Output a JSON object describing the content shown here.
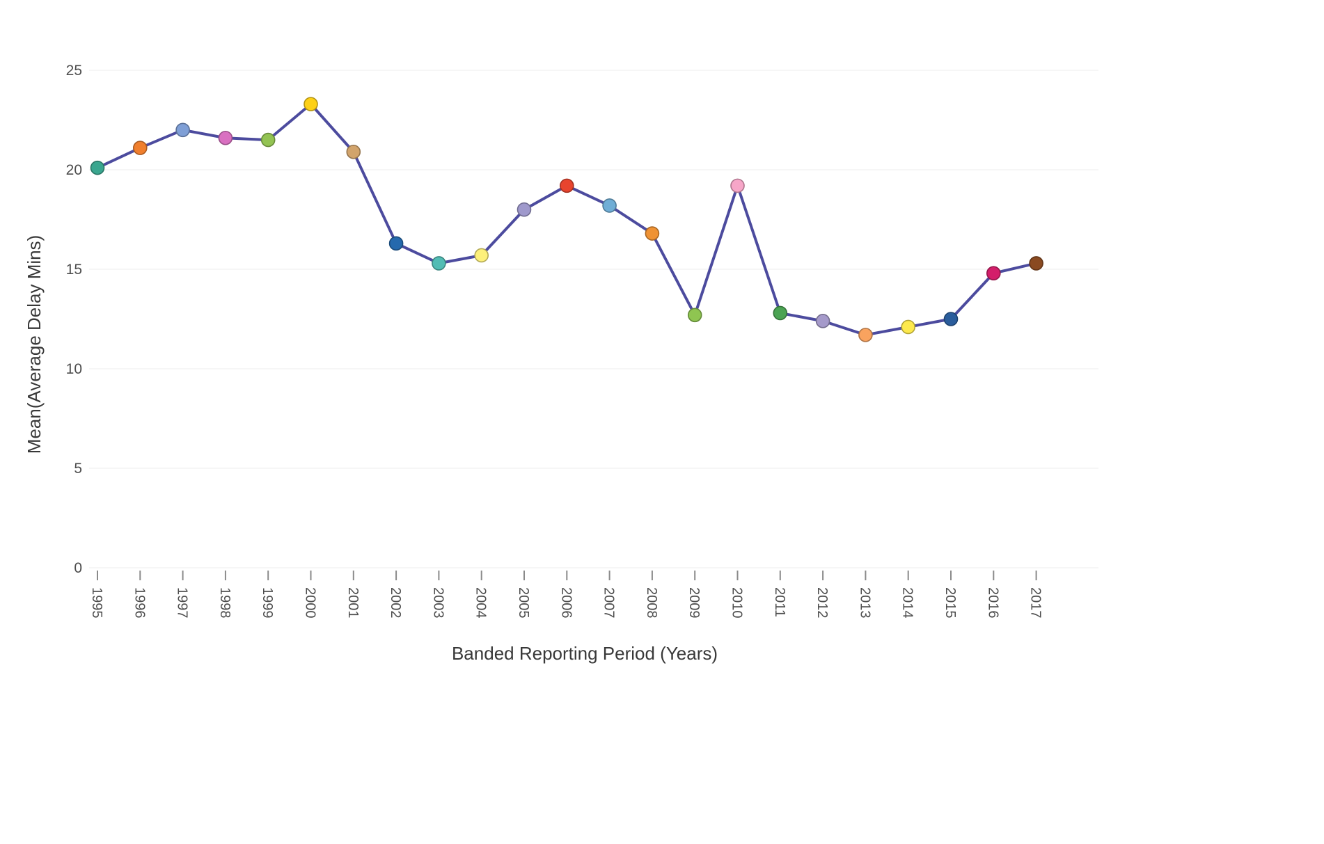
{
  "chart_data": {
    "type": "line",
    "title": "",
    "xlabel": "Banded Reporting Period (Years)",
    "ylabel": "Mean(Average Delay Mins)",
    "categories": [
      "1995",
      "1996",
      "1997",
      "1998",
      "1999",
      "2000",
      "2001",
      "2002",
      "2003",
      "2004",
      "2005",
      "2006",
      "2007",
      "2008",
      "2009",
      "2010",
      "2011",
      "2012",
      "2013",
      "2014",
      "2015",
      "2016",
      "2017"
    ],
    "values": [
      20.1,
      21.1,
      22.0,
      21.6,
      21.5,
      23.3,
      20.9,
      16.3,
      15.3,
      15.7,
      18.0,
      19.2,
      18.2,
      16.8,
      12.7,
      19.2,
      12.8,
      12.4,
      11.7,
      12.1,
      12.5,
      14.8,
      15.3
    ],
    "point_colors": [
      "#3aa68f",
      "#f07f2d",
      "#7f9fd6",
      "#d970c1",
      "#93c353",
      "#fdd017",
      "#d2a46c",
      "#2569ad",
      "#52bcb4",
      "#fdf07a",
      "#9f99cc",
      "#e8442e",
      "#70aed6",
      "#ef9234",
      "#8fc551",
      "#f7a6c8",
      "#4ba353",
      "#a59aca",
      "#f9a35f",
      "#fde94d",
      "#2a5d9c",
      "#d31e6a",
      "#8a4a21"
    ],
    "line_color": "#4c4b9e",
    "ylim": [
      0,
      25
    ],
    "yticks": [
      0,
      5,
      10,
      15,
      20,
      25
    ],
    "grid": "horizontal",
    "legend": "none"
  }
}
